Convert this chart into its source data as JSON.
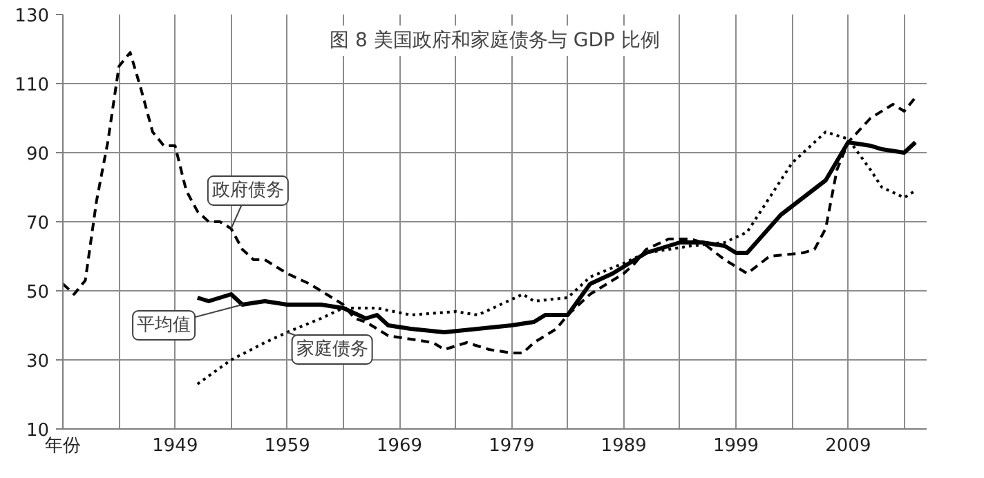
{
  "chart_data": {
    "type": "line",
    "title": "图 8 美国政府和家庭债务与 GDP 比例",
    "xlim": [
      1939,
      2016
    ],
    "ylim": [
      10,
      130
    ],
    "xticks": [
      {
        "value": 1939,
        "label": "年份"
      },
      {
        "value": 1944,
        "label": null
      },
      1949,
      {
        "value": 1954,
        "label": null
      },
      1959,
      {
        "value": 1964,
        "label": null
      },
      1969,
      {
        "value": 1974,
        "label": null
      },
      1979,
      {
        "value": 1984,
        "label": null
      },
      1989,
      {
        "value": 1994,
        "label": null
      },
      1999,
      {
        "value": 2004,
        "label": null
      },
      2009,
      {
        "value": 2014,
        "label": null
      }
    ],
    "yticks": [
      10,
      30,
      50,
      70,
      90,
      110,
      130
    ],
    "grid": true,
    "series": [
      {
        "name": "政府债务",
        "color": "#000000",
        "line_style": "dashed",
        "x": [
          1939,
          1940,
          1941,
          1942,
          1943,
          1944,
          1945,
          1946,
          1947,
          1948,
          1949,
          1950,
          1951,
          1952,
          1953,
          1954,
          1955,
          1956,
          1957,
          1958,
          1959,
          1961,
          1964,
          1965,
          1966,
          1968,
          1970,
          1972,
          1973,
          1975,
          1977,
          1979,
          1980,
          1981,
          1983,
          1984,
          1986,
          1989,
          1990,
          1991,
          1993,
          1995,
          1996,
          1998,
          2000,
          2002,
          2005,
          2006,
          2007,
          2008,
          2009,
          2011,
          2013,
          2014,
          2015
        ],
        "values": [
          52,
          49,
          53,
          76,
          93,
          115,
          119,
          108,
          96,
          92,
          92,
          79,
          73,
          70,
          70,
          68,
          62,
          59,
          59,
          57,
          55,
          52,
          46,
          42,
          41,
          37,
          36,
          35,
          33,
          35,
          33,
          32,
          32,
          35,
          39,
          43,
          49,
          55,
          58,
          62,
          65,
          65,
          64,
          59,
          55,
          60,
          61,
          62,
          68,
          85,
          93,
          100,
          104,
          102,
          106
        ]
      },
      {
        "name": "平均值",
        "color": "#000000",
        "line_style": "solid",
        "x": [
          1951,
          1952,
          1954,
          1955,
          1957,
          1959,
          1962,
          1964,
          1966,
          1967,
          1968,
          1970,
          1973,
          1976,
          1979,
          1981,
          1982,
          1984,
          1986,
          1988,
          1989,
          1991,
          1994,
          1996,
          1998,
          1999,
          2000,
          2003,
          2005,
          2007,
          2009,
          2011,
          2012,
          2014,
          2015
        ],
        "values": [
          48,
          47,
          49,
          46,
          47,
          46,
          46,
          45,
          42,
          43,
          40,
          39,
          38,
          39,
          40,
          41,
          43,
          43,
          52,
          55,
          57,
          61,
          64,
          64,
          63,
          61,
          61,
          72,
          77,
          82,
          93,
          92,
          91,
          90,
          93
        ]
      },
      {
        "name": "家庭债务",
        "color": "#000000",
        "line_style": "dotted",
        "x": [
          1951,
          1954,
          1957,
          1959,
          1962,
          1964,
          1967,
          1970,
          1974,
          1976,
          1978,
          1980,
          1981,
          1984,
          1986,
          1989,
          1991,
          1995,
          1998,
          2000,
          2002,
          2004,
          2007,
          2009,
          2011,
          2012,
          2014,
          2015
        ],
        "values": [
          23,
          30,
          35,
          38,
          42,
          45,
          45,
          43,
          44,
          43,
          46,
          49,
          47,
          48,
          54,
          58,
          61,
          63,
          64,
          67,
          77,
          87,
          96,
          94,
          85,
          80,
          77,
          79
        ]
      }
    ]
  }
}
